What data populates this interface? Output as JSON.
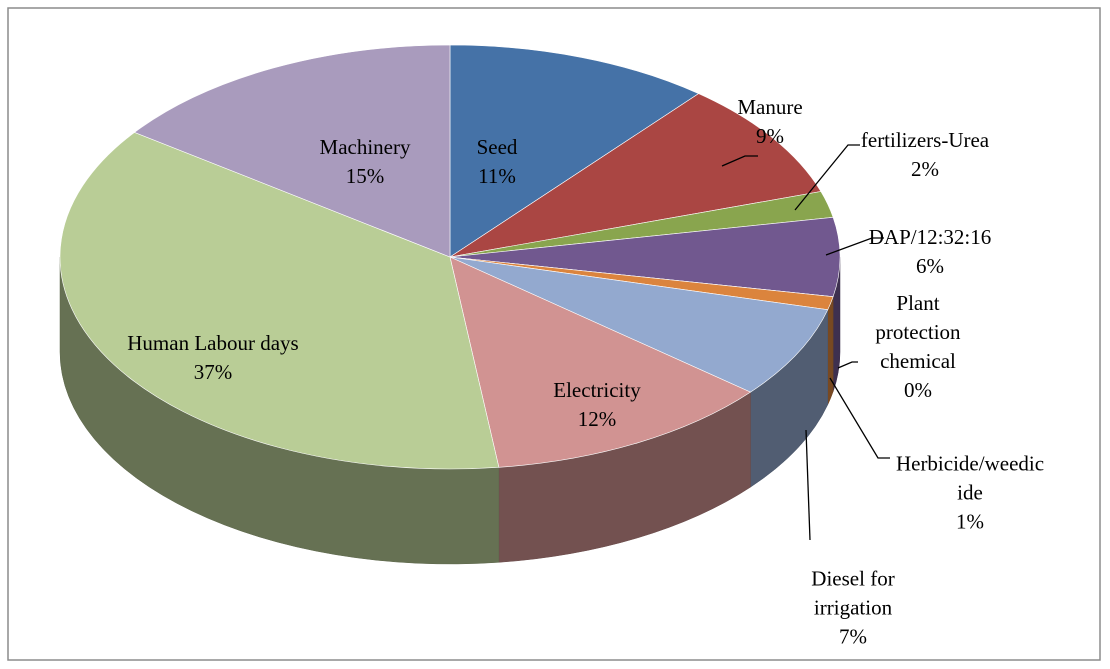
{
  "chart_data": {
    "type": "pie",
    "categories": [
      "Seed",
      "Manure",
      "fertilizers-Urea",
      "DAP/12:32:16",
      "Plant protection chemical",
      "Herbicide/weedicide",
      "Diesel for irrigation",
      "Electricity",
      "Human Labour days",
      "Machinery"
    ],
    "values": [
      11,
      9,
      2,
      6,
      0,
      1,
      7,
      12,
      37,
      15
    ],
    "value_labels": [
      "11%",
      "9%",
      "2%",
      "6%",
      "0%",
      "1%",
      "7%",
      "12%",
      "37%",
      "15%"
    ],
    "colors": [
      "#4572a7",
      "#aa4643",
      "#89a54e",
      "#71588f",
      "#4198af",
      "#db843d",
      "#93a9cf",
      "#d19392",
      "#b9cd96",
      "#a99bbd"
    ]
  }
}
